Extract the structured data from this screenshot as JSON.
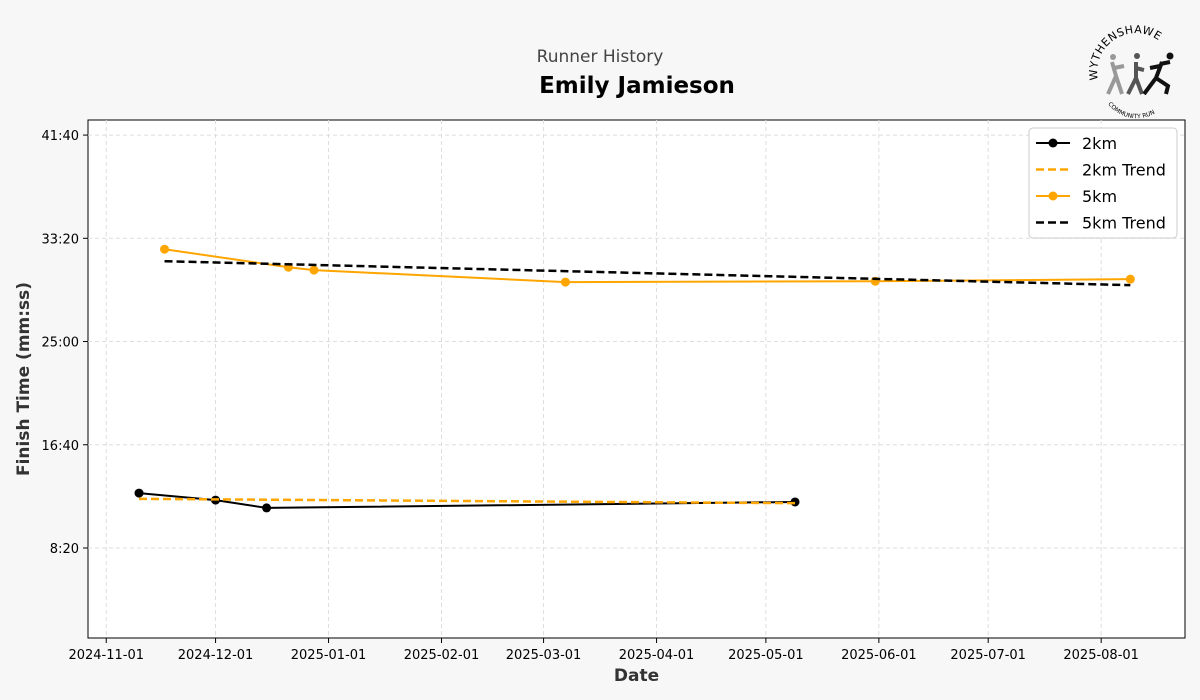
{
  "chart_data": {
    "type": "line",
    "subtitle": "Runner History",
    "title": "Emily Jamieson",
    "xlabel": "Date",
    "ylabel": "Finish Time (mm:ss)",
    "xlim": [
      "2024-10-27",
      "2025-08-24"
    ],
    "ylim_seconds": [
      64,
      2573
    ],
    "grid": true,
    "legend_position": "top-right",
    "x_ticks": [
      "2024-11-01",
      "2024-12-01",
      "2025-01-01",
      "2025-02-01",
      "2025-03-01",
      "2025-04-01",
      "2025-05-01",
      "2025-06-01",
      "2025-07-01",
      "2025-08-01"
    ],
    "y_ticks": [
      {
        "seconds": 500,
        "label": "8:20"
      },
      {
        "seconds": 1000,
        "label": "16:40"
      },
      {
        "seconds": 1500,
        "label": "25:00"
      },
      {
        "seconds": 2000,
        "label": "33:20"
      },
      {
        "seconds": 2500,
        "label": "41:40"
      }
    ],
    "series": [
      {
        "name": "2km",
        "style": "solid-marker",
        "color": "#000000",
        "points": [
          [
            "2024-11-10",
            766
          ],
          [
            "2024-12-01",
            732
          ],
          [
            "2024-12-15",
            694
          ],
          [
            "2025-05-09",
            723
          ]
        ]
      },
      {
        "name": "2km Trend",
        "style": "dashed",
        "color": "#ffa500",
        "points": [
          [
            "2024-11-10",
            738
          ],
          [
            "2025-05-09",
            717
          ]
        ]
      },
      {
        "name": "5km",
        "style": "solid-marker",
        "color": "#ffa500",
        "points": [
          [
            "2024-11-17",
            1947
          ],
          [
            "2024-12-21",
            1860
          ],
          [
            "2024-12-28",
            1846
          ],
          [
            "2025-03-07",
            1788
          ],
          [
            "2025-05-31",
            1792
          ],
          [
            "2025-08-09",
            1802
          ]
        ]
      },
      {
        "name": "5km Trend",
        "style": "dashed",
        "color": "#000000",
        "points": [
          [
            "2024-11-17",
            1889
          ],
          [
            "2025-08-09",
            1773
          ]
        ]
      }
    ]
  },
  "logo": {
    "text_top": "WYTHENSHAWE",
    "text_bottom": "COMMUNITY RUN"
  }
}
